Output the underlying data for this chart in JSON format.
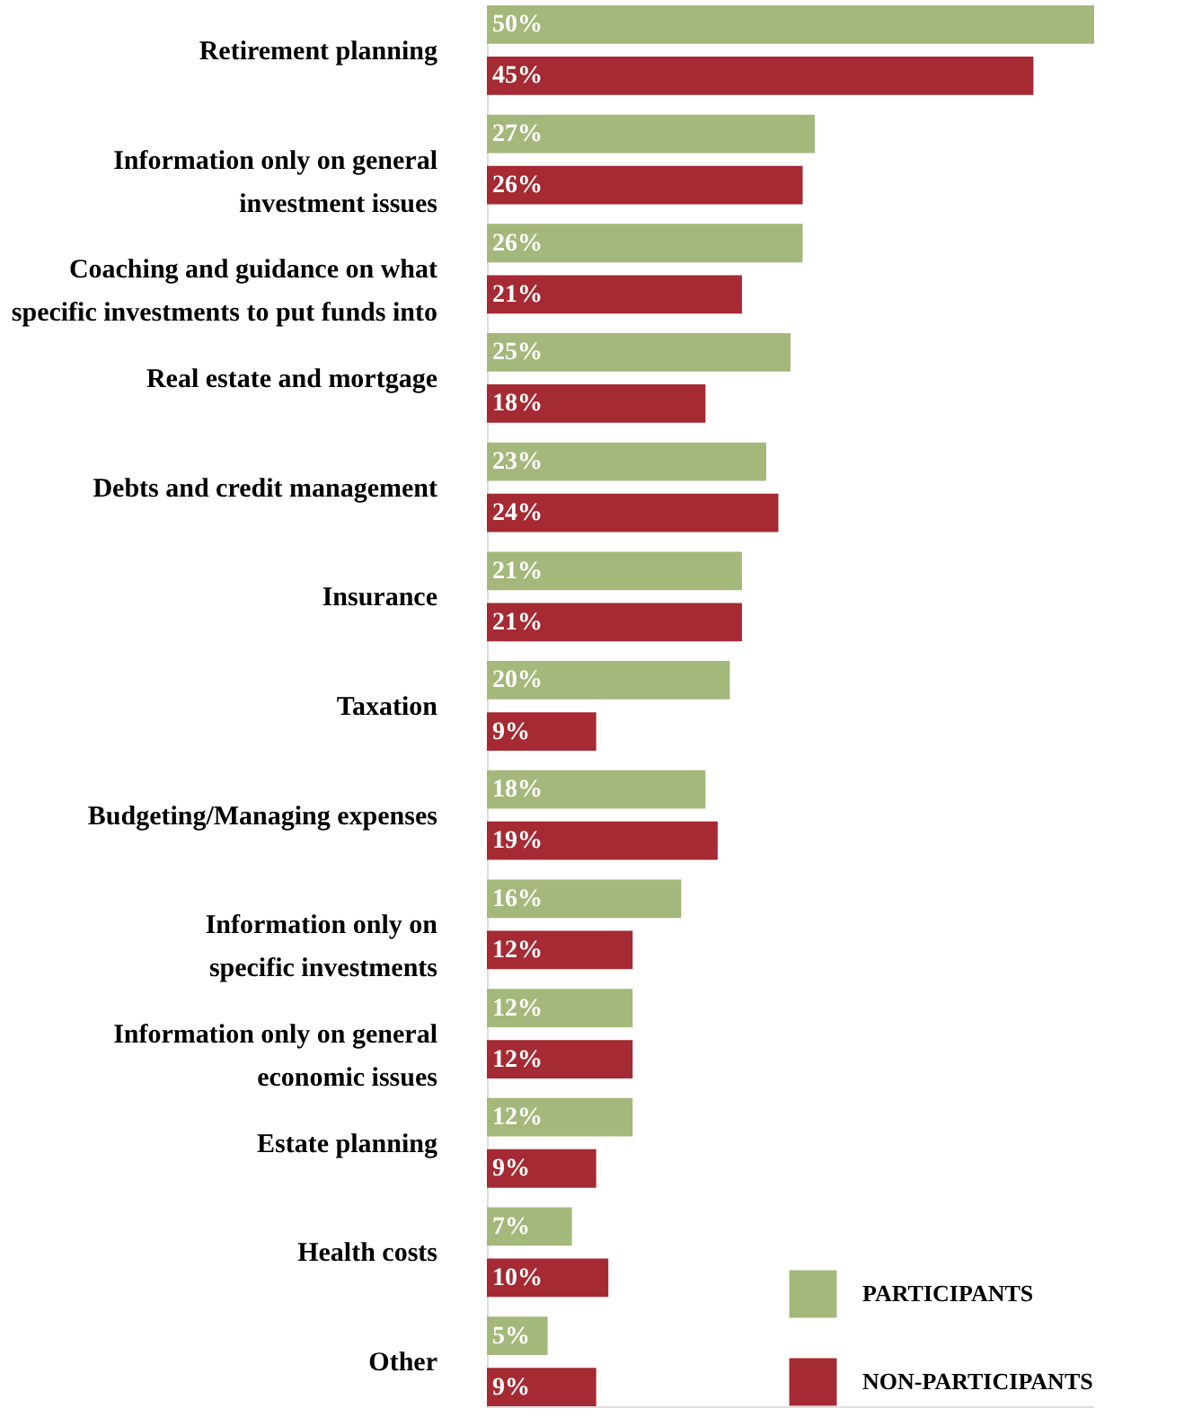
{
  "chart_data": {
    "type": "bar",
    "orientation": "horizontal",
    "legend": "bottom right",
    "grid": false,
    "categories": [
      "Retirement planning",
      "Information only on general\ninvestment issues",
      "Coaching and guidance on what\nspecific investments to put funds into",
      "Real estate and mortgage",
      "Debts and credit management",
      "Insurance",
      "Taxation",
      "Budgeting/Managing expenses",
      "Information only on\nspecific investments",
      "Information only on general\neconomic issues",
      "Estate planning",
      "Health costs",
      "Other"
    ],
    "series": [
      {
        "name": "PARTICIPANTS",
        "color": "#a3b87a",
        "values": [
          50,
          27,
          26,
          25,
          23,
          21,
          20,
          18,
          16,
          12,
          12,
          7,
          5
        ],
        "value_labels": [
          "50%",
          "27%",
          "26%",
          "25%",
          "23%",
          "21%",
          "20%",
          "18%",
          "16%",
          "12%",
          "12%",
          "7%",
          "5%"
        ]
      },
      {
        "name": "NON-PARTICIPANTS",
        "color": "#a52a33",
        "values": [
          45,
          26,
          21,
          18,
          24,
          21,
          9,
          19,
          12,
          12,
          9,
          10,
          9
        ],
        "value_labels": [
          "45%",
          "26%",
          "21%",
          "18%",
          "24%",
          "21%",
          "9%",
          "19%",
          "12%",
          "12%",
          "9%",
          "10%",
          "9%"
        ]
      }
    ]
  }
}
